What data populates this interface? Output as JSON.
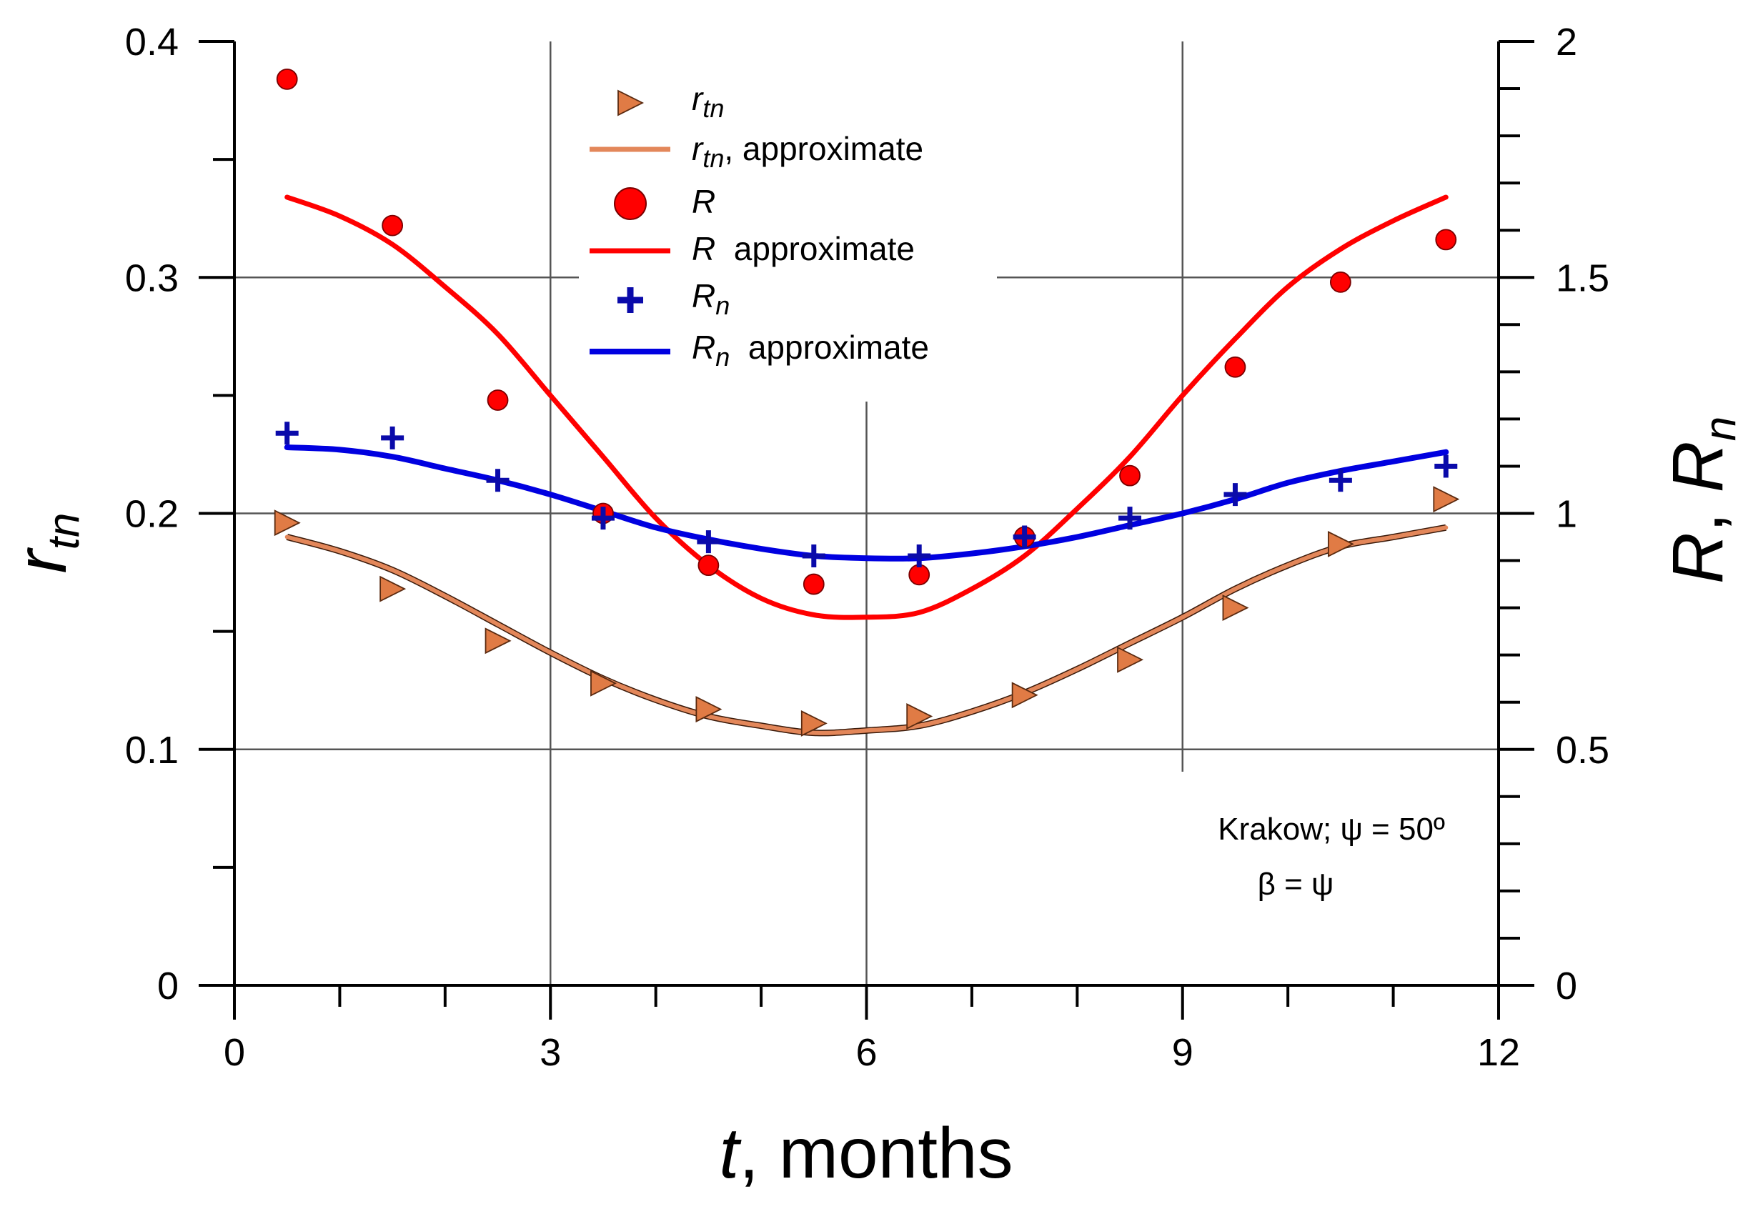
{
  "chart_data": {
    "type": "scatter",
    "x_axis": {
      "label_var": "t",
      "label_rest": ", months",
      "range": [
        0,
        12
      ],
      "ticks": [
        "0",
        "3",
        "6",
        "9",
        "12"
      ],
      "tick_values": [
        0,
        3,
        6,
        9,
        12
      ],
      "minor_step": 1
    },
    "y_left": {
      "label_main": "r",
      "label_sub": "tn",
      "range": [
        0,
        0.4
      ],
      "ticks": [
        "0",
        "0.1",
        "0.2",
        "0.3",
        "0.4"
      ],
      "tick_values": [
        0,
        0.1,
        0.2,
        0.3,
        0.4
      ],
      "minor_step": 0.05
    },
    "y_right": {
      "label_R": "R",
      "label_sep": ", ",
      "label_Rn_main": "R",
      "label_Rn_sub": "n",
      "range": [
        0,
        2
      ],
      "ticks": [
        "0",
        "0.5",
        "1",
        "1.5",
        "2"
      ],
      "tick_values": [
        0,
        0.5,
        1,
        1.5,
        2
      ],
      "minor_step": 0.1
    },
    "grid": {
      "x_values": [
        3,
        6,
        9
      ],
      "y_values": [
        0.1,
        0.2,
        0.3
      ]
    },
    "legend": {
      "position": "top-center",
      "entries": [
        {
          "marker": "triangle",
          "main": "r",
          "sub": "tn",
          "suffix": ""
        },
        {
          "marker": "line-orange",
          "main": "r",
          "sub": "tn",
          "suffix": ", approximate"
        },
        {
          "marker": "circle",
          "main": "R",
          "sub": "",
          "suffix": ""
        },
        {
          "marker": "line-red",
          "main": "R",
          "sub": "",
          "suffix": "  approximate"
        },
        {
          "marker": "plus",
          "main": "R",
          "sub": "n",
          "suffix": ""
        },
        {
          "marker": "line-blue",
          "main": "R",
          "sub": "n",
          "suffix": "  approximate"
        }
      ]
    },
    "annotation": {
      "line1": "Krakow; ψ = 50º",
      "line2": "β = ψ"
    },
    "colors": {
      "rtn_marker": "#E07B45",
      "rtn_line": "#E3875A",
      "R": "#FF0000",
      "Rn": "#0A0AAA",
      "Rn_line": "#0000E0",
      "grid": "#555555"
    },
    "series": [
      {
        "id": "rtn",
        "axis": "left",
        "marker": "triangle",
        "x": [
          0.5,
          1.5,
          2.5,
          3.5,
          4.5,
          5.5,
          6.5,
          7.5,
          8.5,
          9.5,
          10.5,
          11.5
        ],
        "y": [
          0.196,
          0.168,
          0.146,
          0.128,
          0.117,
          0.111,
          0.114,
          0.123,
          0.138,
          0.16,
          0.187,
          0.206
        ]
      },
      {
        "id": "rtn_approx",
        "axis": "left",
        "marker": "line",
        "x": [
          0.5,
          1.0,
          1.5,
          2.0,
          2.5,
          3.0,
          3.5,
          4.0,
          4.5,
          5.0,
          5.5,
          6.0,
          6.5,
          7.0,
          7.5,
          8.0,
          8.5,
          9.0,
          9.5,
          10.0,
          10.5,
          11.0,
          11.5
        ],
        "y": [
          0.19,
          0.184,
          0.176,
          0.165,
          0.153,
          0.141,
          0.13,
          0.121,
          0.114,
          0.11,
          0.107,
          0.108,
          0.11,
          0.116,
          0.124,
          0.134,
          0.145,
          0.156,
          0.168,
          0.178,
          0.186,
          0.19,
          0.194
        ]
      },
      {
        "id": "R",
        "axis": "right",
        "marker": "circle",
        "x": [
          0.5,
          1.5,
          2.5,
          3.5,
          4.5,
          5.5,
          6.5,
          7.5,
          8.5,
          9.5,
          10.5,
          11.5
        ],
        "y": [
          1.92,
          1.61,
          1.24,
          1.0,
          0.89,
          0.85,
          0.87,
          0.95,
          1.08,
          1.31,
          1.49,
          1.58
        ]
      },
      {
        "id": "R_approx",
        "axis": "right",
        "marker": "line",
        "x": [
          0.5,
          1.0,
          1.5,
          2.0,
          2.5,
          3.0,
          3.5,
          4.0,
          4.5,
          5.0,
          5.5,
          6.0,
          6.5,
          7.0,
          7.5,
          8.0,
          8.5,
          9.0,
          9.5,
          10.0,
          10.5,
          11.0,
          11.5
        ],
        "y": [
          1.67,
          1.63,
          1.57,
          1.48,
          1.38,
          1.25,
          1.12,
          0.99,
          0.89,
          0.82,
          0.785,
          0.78,
          0.79,
          0.84,
          0.91,
          1.01,
          1.12,
          1.25,
          1.37,
          1.48,
          1.56,
          1.62,
          1.67
        ]
      },
      {
        "id": "Rn",
        "axis": "right",
        "marker": "plus",
        "x": [
          0.5,
          1.5,
          2.5,
          3.5,
          4.5,
          5.5,
          6.5,
          7.5,
          8.5,
          9.5,
          10.5,
          11.5
        ],
        "y": [
          1.17,
          1.16,
          1.07,
          0.99,
          0.94,
          0.91,
          0.91,
          0.95,
          0.99,
          1.04,
          1.07,
          1.1
        ]
      },
      {
        "id": "Rn_approx",
        "axis": "right",
        "marker": "line",
        "x": [
          0.5,
          1.0,
          1.5,
          2.0,
          2.5,
          3.0,
          3.5,
          4.0,
          4.5,
          5.0,
          5.5,
          6.0,
          6.5,
          7.0,
          7.5,
          8.0,
          8.5,
          9.0,
          9.5,
          10.0,
          10.5,
          11.0,
          11.5
        ],
        "y": [
          1.14,
          1.135,
          1.12,
          1.095,
          1.07,
          1.04,
          1.005,
          0.97,
          0.945,
          0.925,
          0.91,
          0.905,
          0.905,
          0.915,
          0.93,
          0.95,
          0.975,
          1.0,
          1.03,
          1.065,
          1.09,
          1.11,
          1.13
        ]
      }
    ]
  }
}
